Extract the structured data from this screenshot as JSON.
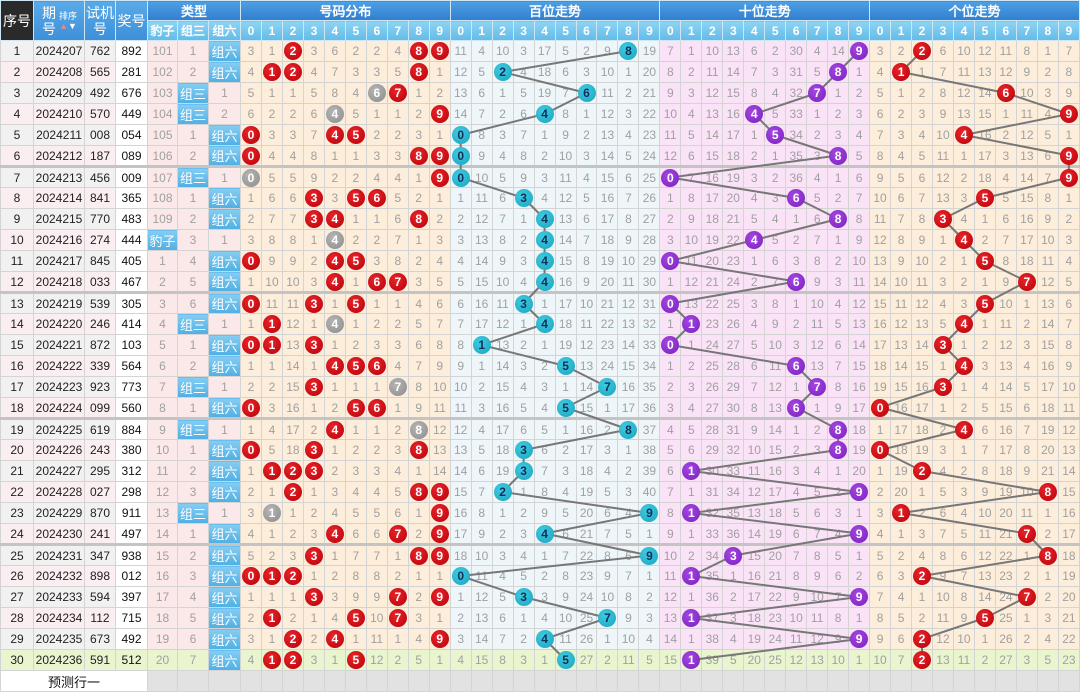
{
  "header": {
    "seq": "序号",
    "issue": "期号",
    "sort_label": "排序",
    "trial": "试机号",
    "draw": "奖号",
    "type_group": "类型",
    "types": [
      "豹子",
      "组三",
      "组六"
    ],
    "dist_group": "号码分布",
    "bai_group": "百位走势",
    "shi_group": "十位走势",
    "ge_group": "个位走势",
    "digits": [
      "0",
      "1",
      "2",
      "3",
      "4",
      "5",
      "6",
      "7",
      "8",
      "9"
    ]
  },
  "rows": [
    {
      "seq": "1",
      "issue": "2024207",
      "trial": "762",
      "draw": "892",
      "type": "组六"
    },
    {
      "seq": "2",
      "issue": "2024208",
      "trial": "565",
      "draw": "281",
      "type": "组六"
    },
    {
      "seq": "3",
      "issue": "2024209",
      "trial": "492",
      "draw": "676",
      "type": "组三"
    },
    {
      "seq": "4",
      "issue": "2024210",
      "trial": "570",
      "draw": "449",
      "type": "组三"
    },
    {
      "seq": "5",
      "issue": "2024211",
      "trial": "008",
      "draw": "054",
      "type": "组六"
    },
    {
      "seq": "6",
      "issue": "2024212",
      "trial": "187",
      "draw": "089",
      "type": "组六"
    },
    {
      "seq": "7",
      "issue": "2024213",
      "trial": "456",
      "draw": "009",
      "type": "组三"
    },
    {
      "seq": "8",
      "issue": "2024214",
      "trial": "841",
      "draw": "365",
      "type": "组六"
    },
    {
      "seq": "9",
      "issue": "2024215",
      "trial": "770",
      "draw": "483",
      "type": "组六"
    },
    {
      "seq": "10",
      "issue": "2024216",
      "trial": "274",
      "draw": "444",
      "type": "豹子"
    },
    {
      "seq": "11",
      "issue": "2024217",
      "trial": "845",
      "draw": "405",
      "type": "组六"
    },
    {
      "seq": "12",
      "issue": "2024218",
      "trial": "033",
      "draw": "467",
      "type": "组六"
    },
    {
      "seq": "13",
      "issue": "2024219",
      "trial": "539",
      "draw": "305",
      "type": "组六"
    },
    {
      "seq": "14",
      "issue": "2024220",
      "trial": "246",
      "draw": "414",
      "type": "组三"
    },
    {
      "seq": "15",
      "issue": "2024221",
      "trial": "872",
      "draw": "103",
      "type": "组六"
    },
    {
      "seq": "16",
      "issue": "2024222",
      "trial": "339",
      "draw": "564",
      "type": "组六"
    },
    {
      "seq": "17",
      "issue": "2024223",
      "trial": "923",
      "draw": "773",
      "type": "组三"
    },
    {
      "seq": "18",
      "issue": "2024224",
      "trial": "099",
      "draw": "560",
      "type": "组六"
    },
    {
      "seq": "19",
      "issue": "2024225",
      "trial": "619",
      "draw": "884",
      "type": "组三"
    },
    {
      "seq": "20",
      "issue": "2024226",
      "trial": "243",
      "draw": "380",
      "type": "组六"
    },
    {
      "seq": "21",
      "issue": "2024227",
      "trial": "295",
      "draw": "312",
      "type": "组六"
    },
    {
      "seq": "22",
      "issue": "2024228",
      "trial": "027",
      "draw": "298",
      "type": "组六"
    },
    {
      "seq": "23",
      "issue": "2024229",
      "trial": "870",
      "draw": "911",
      "type": "组三"
    },
    {
      "seq": "24",
      "issue": "2024230",
      "trial": "241",
      "draw": "497",
      "type": "组六"
    },
    {
      "seq": "25",
      "issue": "2024231",
      "trial": "347",
      "draw": "938",
      "type": "组六"
    },
    {
      "seq": "26",
      "issue": "2024232",
      "trial": "898",
      "draw": "012",
      "type": "组六"
    },
    {
      "seq": "27",
      "issue": "2024233",
      "trial": "594",
      "draw": "397",
      "type": "组六"
    },
    {
      "seq": "28",
      "issue": "2024234",
      "trial": "112",
      "draw": "715",
      "type": "组六"
    },
    {
      "seq": "29",
      "issue": "2024235",
      "trial": "673",
      "draw": "492",
      "type": "组六"
    },
    {
      "seq": "30",
      "issue": "2024236",
      "trial": "591",
      "draw": "512",
      "type": "组六"
    }
  ],
  "first_row_omissions": {
    "type": [
      101,
      1,
      null
    ],
    "dist": [
      3,
      1,
      null,
      3,
      6,
      2,
      2,
      4,
      null,
      null
    ],
    "bai": [
      11,
      4,
      10,
      3,
      17,
      5,
      2,
      9,
      null,
      19
    ],
    "shi": [
      7,
      1,
      10,
      13,
      6,
      2,
      30,
      4,
      14,
      null
    ],
    "ge": [
      3,
      2,
      null,
      6,
      10,
      12,
      11,
      8,
      1,
      7
    ]
  },
  "prediction_row_label": "预测行一",
  "colors": {
    "hit": "#c8000a",
    "repeat": "#9a9a9a",
    "bai": "#1fb0c8",
    "shi": "#8a2bd0",
    "ge": "#c8000a",
    "trend_line": "#777777"
  }
}
